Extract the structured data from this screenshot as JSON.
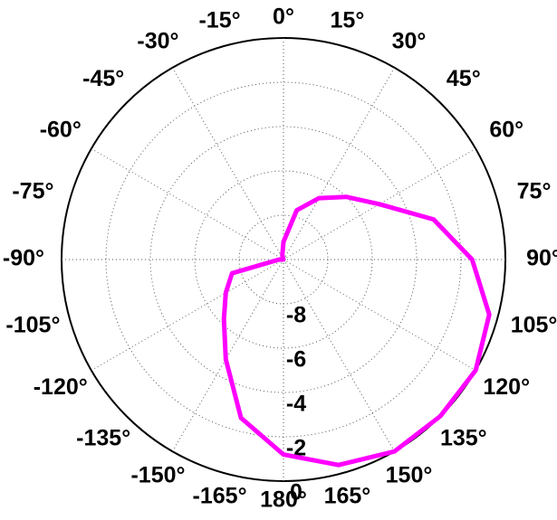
{
  "chart_data": {
    "type": "polar",
    "theta": [
      0,
      15,
      30,
      45,
      60,
      75,
      90,
      105,
      120,
      135,
      150,
      165,
      180,
      195,
      210,
      225,
      240,
      255,
      270,
      285,
      300,
      315,
      330,
      345
    ],
    "values": [
      -9.2,
      -7.7,
      -6.8,
      -6.0,
      -5.0,
      -3.0,
      -1.5,
      -0.4,
      0,
      0,
      0,
      -0.4,
      -1.2,
      -2.6,
      -4.8,
      -6.2,
      -7.0,
      -7.6,
      -9.8,
      -10,
      -10,
      -10,
      -10,
      -9.8
    ],
    "color": "#ff00ff",
    "rlim": [
      -10,
      0
    ],
    "rticks": [
      -8,
      -6,
      -4,
      -2,
      0
    ],
    "thetaticks": [
      {
        "value": 0,
        "label": "0°"
      },
      {
        "value": 15,
        "label": "15°"
      },
      {
        "value": 30,
        "label": "30°"
      },
      {
        "value": 45,
        "label": "45°"
      },
      {
        "value": 60,
        "label": "60°"
      },
      {
        "value": 75,
        "label": "75°"
      },
      {
        "value": 90,
        "label": "90°"
      },
      {
        "value": 105,
        "label": "105°"
      },
      {
        "value": 120,
        "label": "120°"
      },
      {
        "value": 135,
        "label": "135°"
      },
      {
        "value": 150,
        "label": "150°"
      },
      {
        "value": 165,
        "label": "165°"
      },
      {
        "value": 180,
        "label": "180°"
      },
      {
        "value": -165,
        "label": "-165°"
      },
      {
        "value": -150,
        "label": "-150°"
      },
      {
        "value": -135,
        "label": "-135°"
      },
      {
        "value": -120,
        "label": "-120°"
      },
      {
        "value": -105,
        "label": "-105°"
      },
      {
        "value": -90,
        "label": "-90°"
      },
      {
        "value": -75,
        "label": "-75°"
      },
      {
        "value": -60,
        "label": "-60°"
      },
      {
        "value": -45,
        "label": "-45°"
      },
      {
        "value": -30,
        "label": "-30°"
      },
      {
        "value": -15,
        "label": "-15°"
      }
    ],
    "grid": true
  }
}
